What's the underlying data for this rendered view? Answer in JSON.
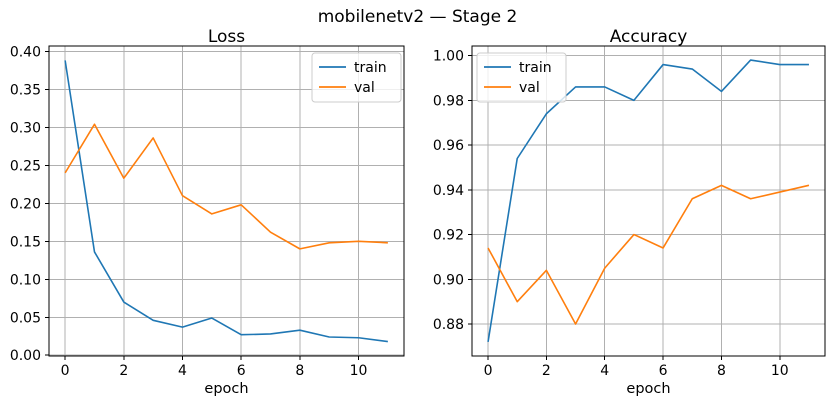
{
  "title": "mobilenetv2 — Stage 2",
  "colors": {
    "train": "#1f77b4",
    "val": "#ff7f0e",
    "grid": "#b0b0b0",
    "spine": "#000000",
    "text": "#000000",
    "legend_edge": "#cccccc",
    "background": "#ffffff"
  },
  "chart_data": [
    {
      "type": "line",
      "title": "Loss",
      "xlabel": "epoch",
      "x": [
        0,
        1,
        2,
        3,
        4,
        5,
        6,
        7,
        8,
        9,
        10,
        11
      ],
      "series": [
        {
          "name": "train",
          "color": "#1f77b4",
          "values": [
            0.388,
            0.136,
            0.07,
            0.046,
            0.037,
            0.049,
            0.027,
            0.028,
            0.033,
            0.024,
            0.023,
            0.018
          ]
        },
        {
          "name": "val",
          "color": "#ff7f0e",
          "values": [
            0.24,
            0.304,
            0.233,
            0.286,
            0.21,
            0.186,
            0.198,
            0.162,
            0.14,
            0.148,
            0.15,
            0.148
          ]
        }
      ],
      "xlim": [
        -0.55,
        11.55
      ],
      "ylim": [
        -0.001,
        0.407
      ],
      "xticks": [
        0,
        2,
        4,
        6,
        8,
        10
      ],
      "yticks": [
        0.0,
        0.05,
        0.1,
        0.15,
        0.2,
        0.25,
        0.3,
        0.35,
        0.4
      ],
      "ytick_decimals": 2,
      "grid": true,
      "legend_loc": "upper-right"
    },
    {
      "type": "line",
      "title": "Accuracy",
      "xlabel": "epoch",
      "x": [
        0,
        1,
        2,
        3,
        4,
        5,
        6,
        7,
        8,
        9,
        10,
        11
      ],
      "series": [
        {
          "name": "train",
          "color": "#1f77b4",
          "values": [
            0.872,
            0.954,
            0.974,
            0.986,
            0.986,
            0.98,
            0.996,
            0.994,
            0.984,
            0.998,
            0.996,
            0.996
          ]
        },
        {
          "name": "val",
          "color": "#ff7f0e",
          "values": [
            0.914,
            0.89,
            0.904,
            0.88,
            0.905,
            0.92,
            0.914,
            0.936,
            0.942,
            0.936,
            0.939,
            0.942
          ]
        }
      ],
      "xlim": [
        -0.55,
        11.55
      ],
      "ylim": [
        0.8657,
        1.0043
      ],
      "xticks": [
        0,
        2,
        4,
        6,
        8,
        10
      ],
      "yticks": [
        0.88,
        0.9,
        0.92,
        0.94,
        0.96,
        0.98,
        1.0
      ],
      "ytick_decimals": 2,
      "grid": true,
      "legend_loc": "upper-left"
    }
  ]
}
